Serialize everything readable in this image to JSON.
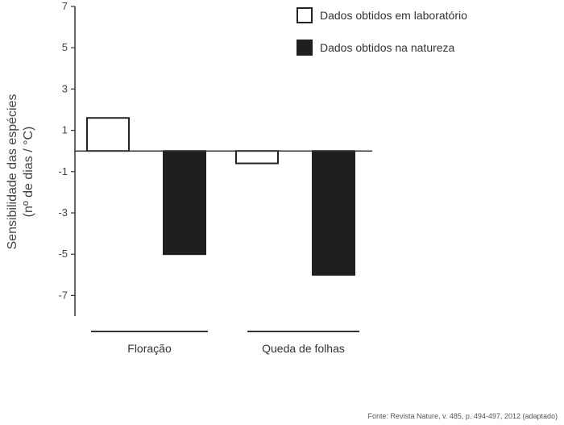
{
  "chart_data": {
    "type": "bar",
    "ylabel_line1": "Sensibilidade das espécies",
    "ylabel_line2": "(nº de dias / °C)",
    "ylim": [
      -8,
      7
    ],
    "yticks": [
      7,
      5,
      3,
      1,
      -1,
      -3,
      -5,
      -7
    ],
    "categories": [
      "Floração",
      "Queda de folhas"
    ],
    "series": [
      {
        "name": "Dados obtidos em laboratório",
        "values": [
          1.6,
          -0.6
        ],
        "fill": "#ffffff",
        "stroke": "#222222"
      },
      {
        "name": "Dados obtidos na natureza",
        "values": [
          -5.0,
          -6.0
        ],
        "fill": "#1f1f1f",
        "stroke": "#1f1f1f"
      }
    ],
    "grid": false,
    "legend_position": "top-right"
  },
  "source_text": "Fonte: Revista Nature, v. 485, p. 494-497, 2012 (adaptado)"
}
